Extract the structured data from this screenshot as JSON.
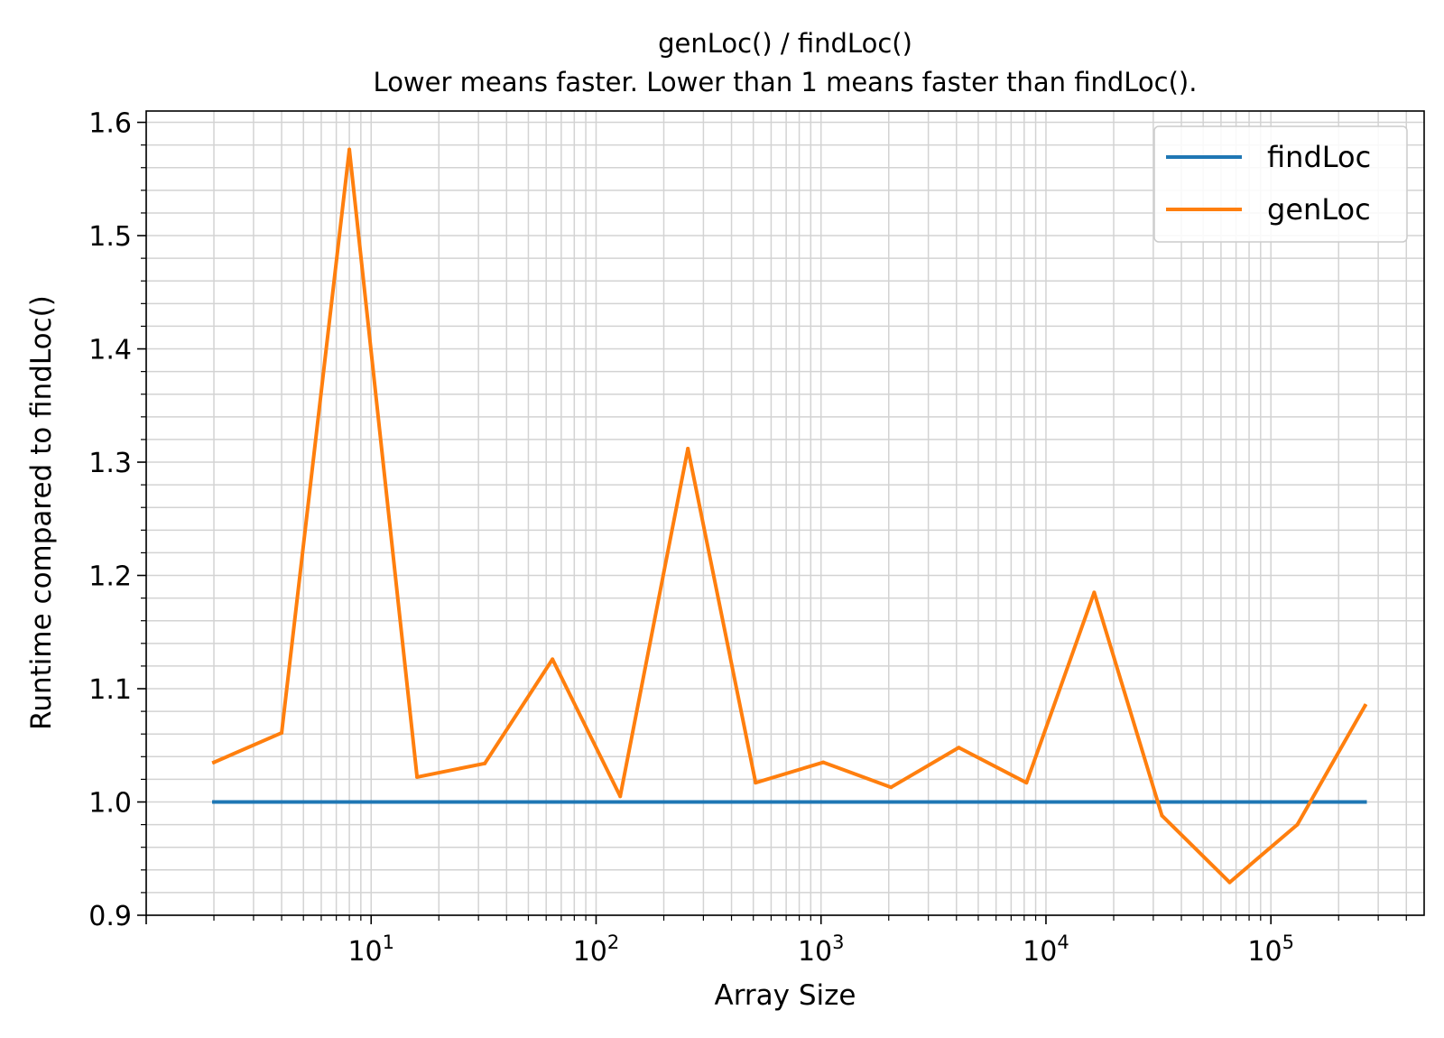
{
  "chart_data": {
    "type": "line",
    "title": "genLoc() / findLoc()",
    "subtitle": "Lower means faster. Lower than 1 means faster than findLoc().",
    "xlabel": "Array Size",
    "ylabel": "Runtime compared to findLoc()",
    "xscale": "log",
    "xlim": [
      1,
      480000
    ],
    "ylim": [
      0.9,
      1.61
    ],
    "grid": "on (major and minor)",
    "legend_position": "top-right",
    "x_ticks": [
      {
        "base": "10",
        "exp": "1",
        "value": 10
      },
      {
        "base": "10",
        "exp": "2",
        "value": 100
      },
      {
        "base": "10",
        "exp": "3",
        "value": 1000
      },
      {
        "base": "10",
        "exp": "4",
        "value": 10000
      },
      {
        "base": "10",
        "exp": "5",
        "value": 100000
      }
    ],
    "y_ticks": [
      "0.9",
      "1.0",
      "1.1",
      "1.2",
      "1.3",
      "1.4",
      "1.5",
      "1.6"
    ],
    "x": [
      2,
      4,
      8,
      16,
      32,
      64,
      128,
      256,
      512,
      1024,
      2048,
      4096,
      8192,
      16384,
      32768,
      65536,
      131072,
      262144
    ],
    "series": [
      {
        "name": "findLoc",
        "color": "#1f77b4",
        "values": [
          1,
          1,
          1,
          1,
          1,
          1,
          1,
          1,
          1,
          1,
          1,
          1,
          1,
          1,
          1,
          1,
          1,
          1
        ]
      },
      {
        "name": "genLoc",
        "color": "#ff7f0e",
        "values": [
          1.035,
          1.061,
          1.576,
          1.022,
          1.034,
          1.126,
          1.005,
          1.312,
          1.017,
          1.035,
          1.013,
          1.048,
          1.017,
          1.185,
          0.988,
          0.929,
          0.98,
          1.085
        ]
      }
    ]
  }
}
